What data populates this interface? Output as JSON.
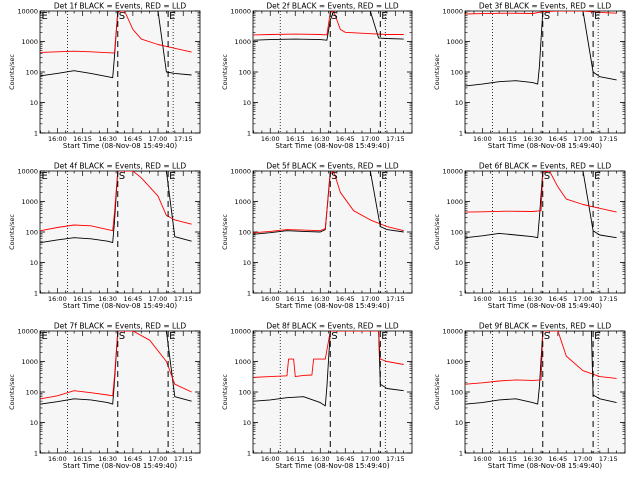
{
  "figure": {
    "xlabel": "Start Time (08-Nov-08 15:49:40)",
    "ylabel": "Counts/sec",
    "x_tick_labels": [
      "16:00",
      "16:15",
      "16:30",
      "16:45",
      "17:00",
      "17:15"
    ],
    "y_tick_labels": [
      "1",
      "10",
      "100",
      "1000",
      "10000"
    ],
    "colors": {
      "events": "#000000",
      "lld": "#ff0000",
      "panel_bg": "#f6f6f6",
      "axis": "#000000"
    }
  },
  "chart_data": [
    {
      "type": "line",
      "title": "Det 1f BLACK = Events, RED = LLD",
      "xlabel": "Start Time (08-Nov-08 15:49:40)",
      "ylabel": "Counts/sec",
      "x_ticks": [
        "16:00",
        "16:15",
        "16:30",
        "16:45",
        "17:00",
        "17:15"
      ],
      "ylim": [
        1,
        10000
      ],
      "yscale": "log",
      "markers": [
        {
          "label": "E",
          "time": "15:50"
        },
        {
          "label": "S",
          "time": "16:36"
        },
        {
          "label": "E",
          "time": "17:06"
        }
      ],
      "series": [
        {
          "name": "BLACK = Events",
          "color": "#000000",
          "x": [
            "15:50",
            "16:00",
            "16:10",
            "16:20",
            "16:30",
            "16:33",
            "16:34",
            "16:36",
            "16:38",
            "16:40",
            "16:45",
            "16:50",
            "17:00",
            "17:05",
            "17:10",
            "17:20"
          ],
          "y": [
            75,
            90,
            110,
            90,
            70,
            65,
            300,
            10000,
            10000,
            10000,
            10000,
            10000,
            10000,
            100,
            90,
            80
          ]
        },
        {
          "name": "RED = LLD",
          "color": "#ff0000",
          "x": [
            "15:50",
            "16:00",
            "16:10",
            "16:20",
            "16:30",
            "16:34",
            "16:36",
            "16:38",
            "16:40",
            "16:45",
            "16:50",
            "17:00",
            "17:10",
            "17:20"
          ],
          "y": [
            440,
            460,
            480,
            460,
            430,
            420,
            9000,
            10000,
            10000,
            2500,
            1200,
            800,
            600,
            450
          ]
        }
      ]
    },
    {
      "type": "line",
      "title": "Det 2f BLACK = Events, RED = LLD",
      "xlabel": "Start Time (08-Nov-08 15:49:40)",
      "ylabel": "Counts/sec",
      "x_ticks": [
        "16:00",
        "16:15",
        "16:30",
        "16:45",
        "17:00",
        "17:15"
      ],
      "ylim": [
        1,
        10000
      ],
      "yscale": "log",
      "markers": [
        {
          "label": "S",
          "time": "16:36"
        },
        {
          "label": "E",
          "time": "17:06"
        }
      ],
      "series": [
        {
          "name": "BLACK = Events",
          "color": "#000000",
          "x": [
            "15:50",
            "16:00",
            "16:15",
            "16:30",
            "16:34",
            "16:36",
            "16:38",
            "16:42",
            "16:50",
            "17:00",
            "17:05",
            "17:10",
            "17:20"
          ],
          "y": [
            1100,
            1150,
            1200,
            1150,
            1100,
            5000,
            10000,
            10000,
            10000,
            10000,
            1300,
            1250,
            1200
          ]
        },
        {
          "name": "RED = LLD",
          "color": "#ff0000",
          "x": [
            "15:50",
            "16:00",
            "16:15",
            "16:30",
            "16:34",
            "16:36",
            "16:38",
            "16:42",
            "16:45",
            "17:00",
            "17:10",
            "17:20"
          ],
          "y": [
            1650,
            1700,
            1750,
            1700,
            1650,
            9000,
            10000,
            2500,
            2000,
            1800,
            1700,
            1700
          ]
        }
      ]
    },
    {
      "type": "line",
      "title": "Det 3f BLACK = Events, RED = LLD",
      "xlabel": "Start Time (08-Nov-08 15:49:40)",
      "ylabel": "Counts/sec",
      "x_ticks": [
        "16:00",
        "16:15",
        "16:30",
        "16:45",
        "17:00",
        "17:15"
      ],
      "ylim": [
        1,
        10000
      ],
      "yscale": "log",
      "markers": [
        {
          "label": "S",
          "time": "16:36"
        },
        {
          "label": "E",
          "time": "17:06"
        }
      ],
      "series": [
        {
          "name": "BLACK = Events",
          "color": "#000000",
          "x": [
            "15:50",
            "16:00",
            "16:10",
            "16:20",
            "16:30",
            "16:33",
            "16:34",
            "16:36",
            "16:40",
            "16:50",
            "17:00",
            "17:06",
            "17:10",
            "17:20"
          ],
          "y": [
            35,
            40,
            48,
            52,
            45,
            40,
            150,
            10000,
            10000,
            10000,
            10000,
            100,
            70,
            55
          ]
        },
        {
          "name": "RED = LLD",
          "color": "#ff0000",
          "x": [
            "15:50",
            "16:00",
            "16:15",
            "16:30",
            "16:36",
            "16:45",
            "17:00",
            "17:10",
            "17:20"
          ],
          "y": [
            8000,
            8200,
            8500,
            8300,
            9500,
            10000,
            10000,
            9000,
            8500
          ]
        }
      ]
    },
    {
      "type": "line",
      "title": "Det 4f BLACK = Events, RED = LLD",
      "xlabel": "Start Time (08-Nov-08 15:49:40)",
      "ylabel": "Counts/sec",
      "x_ticks": [
        "16:00",
        "16:15",
        "16:30",
        "16:45",
        "17:00",
        "17:15"
      ],
      "ylim": [
        1,
        10000
      ],
      "yscale": "log",
      "markers": [
        {
          "label": "E",
          "time": "15:50"
        },
        {
          "label": "S",
          "time": "16:36"
        },
        {
          "label": "E",
          "time": "17:06"
        }
      ],
      "series": [
        {
          "name": "BLACK = Events",
          "color": "#000000",
          "x": [
            "15:50",
            "16:00",
            "16:10",
            "16:20",
            "16:30",
            "16:33",
            "16:34",
            "16:36",
            "16:45",
            "16:55",
            "17:05",
            "17:10",
            "17:20"
          ],
          "y": [
            45,
            55,
            65,
            60,
            50,
            45,
            200,
            10000,
            10000,
            10000,
            10000,
            70,
            50
          ]
        },
        {
          "name": "RED = LLD",
          "color": "#ff0000",
          "x": [
            "15:50",
            "16:00",
            "16:10",
            "16:20",
            "16:30",
            "16:33",
            "16:34",
            "16:36",
            "16:45",
            "16:50",
            "17:00",
            "17:05",
            "17:10",
            "17:20"
          ],
          "y": [
            110,
            140,
            170,
            160,
            120,
            110,
            400,
            10000,
            10000,
            6000,
            1500,
            350,
            250,
            180
          ]
        }
      ]
    },
    {
      "type": "line",
      "title": "Det 5f BLACK = Events, RED = LLD",
      "xlabel": "Start Time (08-Nov-08 15:49:40)",
      "ylabel": "Counts/sec",
      "x_ticks": [
        "16:00",
        "16:15",
        "16:30",
        "16:45",
        "17:00",
        "17:15"
      ],
      "ylim": [
        1,
        10000
      ],
      "yscale": "log",
      "markers": [
        {
          "label": "S",
          "time": "16:36"
        },
        {
          "label": "E",
          "time": "17:06"
        }
      ],
      "series": [
        {
          "name": "BLACK = Events",
          "color": "#000000",
          "x": [
            "15:50",
            "16:00",
            "16:10",
            "16:20",
            "16:30",
            "16:33",
            "16:36",
            "16:40",
            "16:50",
            "17:00",
            "17:06",
            "17:10",
            "17:20"
          ],
          "y": [
            85,
            95,
            110,
            105,
            100,
            120,
            10000,
            10000,
            10000,
            10000,
            150,
            120,
            100
          ]
        },
        {
          "name": "RED = LLD",
          "color": "#ff0000",
          "x": [
            "15:50",
            "16:00",
            "16:10",
            "16:20",
            "16:30",
            "16:33",
            "16:36",
            "16:38",
            "16:42",
            "16:50",
            "17:00",
            "17:10",
            "17:20"
          ],
          "y": [
            95,
            105,
            120,
            115,
            110,
            130,
            8000,
            10000,
            2000,
            500,
            250,
            150,
            110
          ]
        }
      ]
    },
    {
      "type": "line",
      "title": "Det 6f BLACK = Events, RED = LLD",
      "xlabel": "Start Time (08-Nov-08 15:49:40)",
      "ylabel": "Counts/sec",
      "x_ticks": [
        "16:00",
        "16:15",
        "16:30",
        "16:45",
        "17:00",
        "17:15"
      ],
      "ylim": [
        1,
        10000
      ],
      "yscale": "log",
      "markers": [
        {
          "label": "S",
          "time": "16:36"
        },
        {
          "label": "E",
          "time": "17:06"
        }
      ],
      "series": [
        {
          "name": "BLACK = Events",
          "color": "#000000",
          "x": [
            "15:50",
            "16:00",
            "16:10",
            "16:20",
            "16:30",
            "16:33",
            "16:34",
            "16:36",
            "16:45",
            "17:00",
            "17:06",
            "17:10",
            "17:20"
          ],
          "y": [
            65,
            75,
            90,
            80,
            70,
            65,
            300,
            10000,
            10000,
            10000,
            110,
            80,
            65
          ]
        },
        {
          "name": "RED = LLD",
          "color": "#ff0000",
          "x": [
            "15:50",
            "16:00",
            "16:15",
            "16:30",
            "16:35",
            "16:36",
            "16:40",
            "16:45",
            "16:50",
            "17:00",
            "17:10",
            "17:20"
          ],
          "y": [
            450,
            460,
            480,
            470,
            500,
            9000,
            10000,
            3000,
            1200,
            800,
            600,
            450
          ]
        }
      ]
    },
    {
      "type": "line",
      "title": "Det 7f BLACK = Events, RED = LLD",
      "xlabel": "Start Time (08-Nov-08 15:49:40)",
      "ylabel": "Counts/sec",
      "x_ticks": [
        "16:00",
        "16:15",
        "16:30",
        "16:45",
        "17:00",
        "17:15"
      ],
      "ylim": [
        1,
        10000
      ],
      "yscale": "log",
      "markers": [
        {
          "label": "E",
          "time": "15:50"
        },
        {
          "label": "S",
          "time": "16:36"
        },
        {
          "label": "E",
          "time": "17:06"
        }
      ],
      "series": [
        {
          "name": "BLACK = Events",
          "color": "#000000",
          "x": [
            "15:50",
            "16:00",
            "16:10",
            "16:20",
            "16:30",
            "16:33",
            "16:34",
            "16:36",
            "16:45",
            "16:55",
            "17:05",
            "17:10",
            "17:20"
          ],
          "y": [
            40,
            48,
            60,
            55,
            45,
            40,
            200,
            10000,
            10000,
            10000,
            10000,
            70,
            50
          ]
        },
        {
          "name": "RED = LLD",
          "color": "#ff0000",
          "x": [
            "15:50",
            "16:00",
            "16:10",
            "16:20",
            "16:30",
            "16:33",
            "16:34",
            "16:36",
            "16:45",
            "16:55",
            "17:05",
            "17:10",
            "17:20"
          ],
          "y": [
            60,
            75,
            110,
            95,
            80,
            75,
            300,
            10000,
            10000,
            5000,
            1000,
            180,
            100
          ]
        }
      ]
    },
    {
      "type": "line",
      "title": "Det 8f BLACK = Events, RED = LLD",
      "xlabel": "Start Time (08-Nov-08 15:49:40)",
      "ylabel": "Counts/sec",
      "x_ticks": [
        "16:00",
        "16:15",
        "16:30",
        "16:45",
        "17:00",
        "17:15"
      ],
      "ylim": [
        1,
        10000
      ],
      "yscale": "log",
      "markers": [
        {
          "label": "S",
          "time": "16:36"
        },
        {
          "label": "E",
          "time": "17:06"
        }
      ],
      "series": [
        {
          "name": "BLACK = Events",
          "color": "#000000",
          "x": [
            "15:50",
            "16:00",
            "16:10",
            "16:20",
            "16:30",
            "16:33",
            "16:34",
            "16:36",
            "16:45",
            "16:55",
            "17:05",
            "17:06",
            "17:10",
            "17:20"
          ],
          "y": [
            50,
            55,
            65,
            70,
            45,
            35,
            150,
            10000,
            10000,
            10000,
            10000,
            180,
            130,
            110
          ]
        },
        {
          "name": "RED = LLD",
          "color": "#ff0000",
          "x": [
            "15:50",
            "16:00",
            "16:10",
            "16:11",
            "16:14",
            "16:15",
            "16:20",
            "16:25",
            "16:26",
            "16:30",
            "16:33",
            "16:36",
            "16:50",
            "17:05",
            "17:06",
            "17:10",
            "17:20"
          ],
          "y": [
            300,
            320,
            340,
            1200,
            1200,
            320,
            350,
            360,
            1200,
            1200,
            1200,
            10000,
            10000,
            10000,
            1200,
            1000,
            800
          ]
        }
      ]
    },
    {
      "type": "line",
      "title": "Det 9f BLACK = Events, RED = LLD",
      "xlabel": "Start Time (08-Nov-08 15:49:40)",
      "ylabel": "Counts/sec",
      "x_ticks": [
        "16:00",
        "16:15",
        "16:30",
        "16:45",
        "17:00",
        "17:15"
      ],
      "ylim": [
        1,
        10000
      ],
      "yscale": "log",
      "markers": [
        {
          "label": "S",
          "time": "16:36"
        },
        {
          "label": "E",
          "time": "17:06"
        }
      ],
      "series": [
        {
          "name": "BLACK = Events",
          "color": "#000000",
          "x": [
            "15:50",
            "16:00",
            "16:10",
            "16:20",
            "16:30",
            "16:33",
            "16:34",
            "16:36",
            "16:45",
            "16:55",
            "17:05",
            "17:06",
            "17:10",
            "17:20"
          ],
          "y": [
            40,
            45,
            55,
            60,
            45,
            40,
            150,
            10000,
            10000,
            10000,
            10000,
            80,
            60,
            45
          ]
        },
        {
          "name": "RED = LLD",
          "color": "#ff0000",
          "x": [
            "15:50",
            "16:00",
            "16:10",
            "16:20",
            "16:30",
            "16:35",
            "16:36",
            "16:45",
            "16:50",
            "17:00",
            "17:10",
            "17:20"
          ],
          "y": [
            180,
            200,
            230,
            250,
            240,
            250,
            10000,
            10000,
            1500,
            500,
            320,
            280
          ]
        }
      ]
    }
  ]
}
